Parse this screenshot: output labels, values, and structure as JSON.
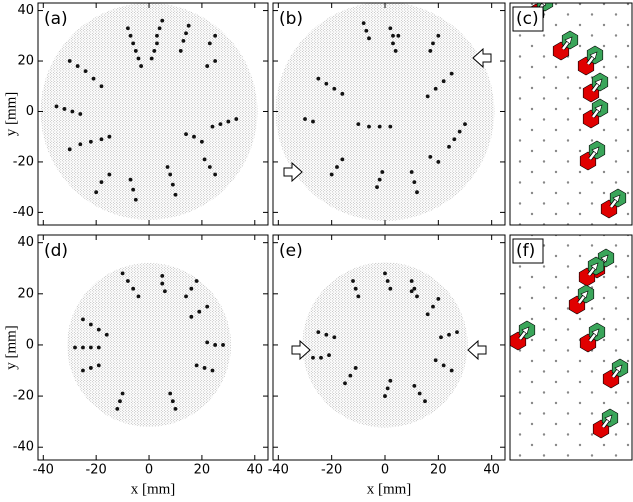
{
  "chart_data": [
    {
      "type": "scatter",
      "label": "(a)",
      "ylabel": "y [mm]",
      "xlim": [
        -42,
        45
      ],
      "ylim": [
        -45,
        43
      ],
      "yticks": [
        -40,
        -20,
        0,
        20,
        40
      ],
      "color": "#111",
      "x": [
        -8,
        -7,
        -6,
        -5,
        -4,
        -3,
        5,
        4,
        3,
        3,
        2,
        1,
        15,
        14,
        13,
        12,
        25,
        23,
        -30,
        -27,
        -24,
        -21,
        -18,
        -35,
        -32,
        -29,
        -26,
        -30,
        -26,
        -22,
        -18,
        -15,
        -20,
        -18,
        -15,
        -5,
        -6,
        -7,
        10,
        9,
        8,
        7,
        25,
        23,
        21,
        33,
        30,
        27,
        24,
        20,
        17,
        14,
        25,
        22
      ],
      "values": [
        33,
        30,
        27,
        24,
        21,
        18,
        36,
        33,
        30,
        27,
        24,
        21,
        34,
        31,
        28,
        24,
        30,
        27,
        20,
        18,
        16,
        13,
        10,
        2,
        1,
        0,
        -1,
        -15,
        -13,
        -12,
        -11,
        -10,
        -32,
        -28,
        -25,
        -35,
        -31,
        -27,
        -33,
        -29,
        -25,
        -22,
        -25,
        -22,
        -19,
        -3,
        -4,
        -5,
        -6,
        -12,
        -10,
        -9,
        20,
        18
      ]
    },
    {
      "type": "scatter",
      "label": "(b)",
      "xlim": [
        -42,
        45
      ],
      "ylim": [
        -45,
        43
      ],
      "color": "#111",
      "x": [
        -8,
        -7,
        -6,
        2,
        3,
        3,
        4,
        5,
        20,
        18,
        17,
        25,
        22,
        19,
        16,
        -25,
        -22,
        -19,
        -16,
        -30,
        -27,
        -10,
        -6,
        -2,
        2,
        -20,
        -18,
        -16,
        -3,
        -2,
        -1,
        12,
        11,
        10,
        30,
        28,
        26,
        24,
        20,
        17
      ],
      "values": [
        35,
        32,
        29,
        33,
        30,
        27,
        24,
        30,
        30,
        27,
        24,
        15,
        12,
        9,
        6,
        13,
        11,
        9,
        7,
        -3,
        -4,
        -5,
        -6,
        -6,
        -6,
        -25,
        -22,
        -19,
        -30,
        -27,
        -24,
        -32,
        -28,
        -24,
        -5,
        -8,
        -11,
        -14,
        -20,
        -18
      ]
    },
    {
      "label": "(c)"
    },
    {
      "type": "scatter",
      "label": "(d)",
      "xlabel": "x [mm]",
      "ylabel": "y [mm]",
      "xlim": [
        -42,
        45
      ],
      "ylim": [
        -45,
        43
      ],
      "xticks": [
        -40,
        -20,
        0,
        20,
        40
      ],
      "yticks": [
        -40,
        -20,
        0,
        20,
        40
      ],
      "color": "#111",
      "x": [
        -10,
        -8,
        -6,
        -4,
        5,
        5,
        6,
        18,
        16,
        14,
        -25,
        -22,
        -19,
        -16,
        -28,
        -25,
        -22,
        -19,
        -25,
        -22,
        -19,
        -12,
        -11,
        -10,
        10,
        9,
        8,
        24,
        21,
        18,
        28,
        25,
        22,
        22,
        19,
        16
      ],
      "values": [
        28,
        25,
        22,
        19,
        27,
        24,
        21,
        25,
        22,
        19,
        10,
        8,
        6,
        4,
        -1,
        -1,
        -1,
        -1,
        -10,
        -9,
        -8,
        -25,
        -22,
        -19,
        -25,
        -22,
        -19,
        -10,
        -9,
        -8,
        0,
        0,
        1,
        15,
        13,
        11
      ]
    },
    {
      "type": "scatter",
      "label": "(e)",
      "xlabel": "x [mm]",
      "xlim": [
        -42,
        45
      ],
      "ylim": [
        -45,
        43
      ],
      "xticks": [
        -40,
        -20,
        0,
        20,
        40
      ],
      "color": "#111",
      "x": [
        -12,
        -11,
        -10,
        0,
        1,
        2,
        10,
        11,
        12,
        10,
        20,
        18,
        16,
        -25,
        -22,
        -19,
        -27,
        -24,
        -21,
        -15,
        -13,
        -11,
        0,
        1,
        2,
        15,
        13,
        11,
        25,
        22,
        19,
        27,
        24,
        21
      ],
      "values": [
        25,
        22,
        19,
        28,
        25,
        22,
        25,
        22,
        19,
        21,
        18,
        15,
        12,
        5,
        4,
        3,
        -5,
        -5,
        -4,
        -15,
        -12,
        -9,
        -20,
        -17,
        -14,
        -22,
        -19,
        -16,
        -10,
        -8,
        -6,
        5,
        4,
        3
      ]
    },
    {
      "label": "(f)"
    }
  ]
}
